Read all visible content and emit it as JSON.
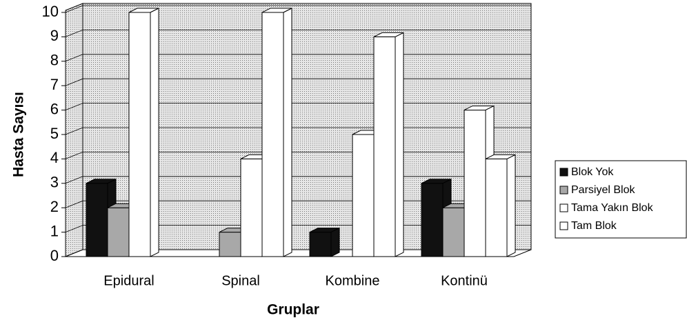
{
  "chart_data": {
    "type": "bar3d",
    "y_label": "Hasta Sayısı",
    "x_label": "Gruplar",
    "categories": [
      "Epidural",
      "Spinal",
      "Kombine",
      "Kontinü"
    ],
    "series": [
      {
        "name": "Blok Yok",
        "color": "#111111",
        "values": [
          3,
          0,
          1,
          3
        ]
      },
      {
        "name": "Parsiyel Blok",
        "color": "#a8a8a8",
        "values": [
          2,
          1,
          0,
          2
        ]
      },
      {
        "name": "Tama Yakın Blok",
        "color": "#ffffff",
        "values": [
          10,
          4,
          5,
          6
        ]
      },
      {
        "name": "Tam Blok",
        "color": "#ffffff",
        "values": [
          0,
          10,
          9,
          4
        ]
      }
    ],
    "ylim": [
      0,
      10
    ],
    "yticks": [
      0,
      1,
      2,
      3,
      4,
      5,
      6,
      7,
      8,
      9,
      10
    ],
    "grid": true,
    "legend": "right"
  }
}
